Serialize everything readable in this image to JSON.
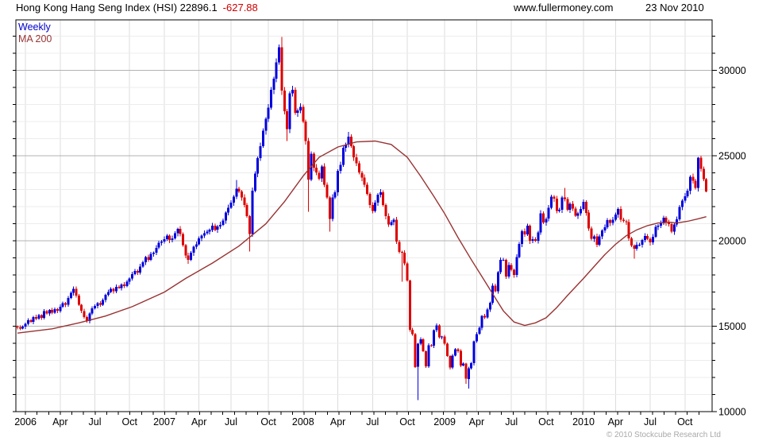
{
  "header": {
    "title": "Hong Kong Hang Seng Index (HSI) 22896.1",
    "change": "-627.88",
    "website": "www.fullermoney.com",
    "date": "23 Nov 2010"
  },
  "legend": {
    "series1": "Weekly",
    "series2": "MA 200"
  },
  "footer": {
    "copyright": "© 2010 Stockcube Research Ltd"
  },
  "colors": {
    "up": "#0000dd",
    "down": "#dd0000",
    "ma": "#993333",
    "change_text": "#cc0000",
    "legend_weekly": "#0000cc",
    "grid_minor": "#ececec",
    "grid_major": "#b3b3b3",
    "grid_vert": "#dcdcdc",
    "axis": "#000000",
    "copyright_text": "#a9a9a9"
  },
  "chart_data": {
    "type": "candlestick",
    "period": "weekly",
    "title": "Hong Kong Hang Seng Index (HSI)",
    "last_close": 22896.1,
    "last_change": -627.88,
    "y_axis": {
      "min": 10000,
      "max": 32950,
      "major_ticks": [
        10000,
        15000,
        20000,
        25000,
        30000
      ],
      "minor_step": 1000,
      "side": "right"
    },
    "x_axis": {
      "ticks": [
        {
          "label": "2006",
          "i": 3
        },
        {
          "label": "Apr",
          "i": 16
        },
        {
          "label": "Jul",
          "i": 29
        },
        {
          "label": "Oct",
          "i": 42
        },
        {
          "label": "2007",
          "i": 55
        },
        {
          "label": "Apr",
          "i": 68
        },
        {
          "label": "Jul",
          "i": 80
        },
        {
          "label": "Oct",
          "i": 94
        },
        {
          "label": "2008",
          "i": 107
        },
        {
          "label": "Apr",
          "i": 120
        },
        {
          "label": "Jul",
          "i": 133
        },
        {
          "label": "Oct",
          "i": 146
        },
        {
          "label": "2009",
          "i": 160
        },
        {
          "label": "Apr",
          "i": 172
        },
        {
          "label": "Jul",
          "i": 185
        },
        {
          "label": "Oct",
          "i": 198
        },
        {
          "label": "2010",
          "i": 212
        },
        {
          "label": "Apr",
          "i": 224
        },
        {
          "label": "Jul",
          "i": 237
        },
        {
          "label": "Oct",
          "i": 250
        }
      ],
      "weeks_per_month": 4.3485
    },
    "first_open": 14990,
    "weekly_closes": [
      14940,
      14870,
      14980,
      15150,
      15350,
      15250,
      15550,
      15450,
      15650,
      15500,
      15880,
      15750,
      15950,
      15800,
      16000,
      15900,
      16150,
      16350,
      16250,
      16650,
      16950,
      17200,
      16800,
      16250,
      15900,
      15550,
      15300,
      15750,
      16050,
      16200,
      16350,
      16250,
      16550,
      16850,
      17000,
      17200,
      17050,
      17300,
      17250,
      17450,
      17350,
      17600,
      17800,
      18050,
      18250,
      18150,
      18500,
      18750,
      19050,
      18900,
      19250,
      19300,
      19600,
      19900,
      19965,
      20100,
      20300,
      20050,
      20150,
      20450,
      20700,
      20400,
      19750,
      19150,
      18900,
      19300,
      19650,
      19800,
      20150,
      20300,
      20450,
      20550,
      20650,
      20900,
      20650,
      20850,
      20950,
      21200,
      21650,
      21950,
      22250,
      22600,
      23050,
      22900,
      22550,
      22100,
      21450,
      20400,
      22950,
      23950,
      24850,
      25550,
      26450,
      27150,
      27800,
      28850,
      29500,
      30450,
      31350,
      28800,
      27600,
      26550,
      28650,
      28850,
      27500,
      27650,
      27850,
      27000,
      25850,
      23600,
      25100,
      24300,
      24000,
      23650,
      24350,
      23300,
      22550,
      21300,
      22550,
      22850,
      24100,
      24450,
      25450,
      25650,
      26100,
      25550,
      24900,
      24550,
      24000,
      23700,
      23300,
      22750,
      22100,
      21750,
      22250,
      22700,
      22850,
      22100,
      21450,
      20950,
      21100,
      21250,
      19950,
      19350,
      19300,
      18680,
      17680,
      14800,
      14550,
      12620,
      13970,
      14240,
      13540,
      12660,
      13890,
      13850,
      14760,
      15040,
      14350,
      14390,
      13970,
      13260,
      12580,
      13280,
      13660,
      13550,
      12700,
      12810,
      11920,
      12530,
      12830,
      14120,
      14550,
      14900,
      15600,
      15520,
      15990,
      16380,
      17390,
      17060,
      18170,
      18890,
      18900,
      17920,
      18600,
      18300,
      18000,
      19060,
      19820,
      20570,
      20380,
      20890,
      20000,
      20100,
      20010,
      20500,
      21620,
      21070,
      21300,
      21930,
      22590,
      22470,
      21750,
      21830,
      22550,
      22460,
      21820,
      22170,
      21900,
      21480,
      21620,
      21870,
      22300,
      21650,
      20730,
      20120,
      20270,
      19770,
      20270,
      20610,
      20790,
      21210,
      21050,
      21240,
      21540,
      21870,
      21240,
      21160,
      21110,
      20140,
      19720,
      19550,
      19770,
      19780,
      20050,
      20290,
      20130,
      19910,
      20250,
      20820,
      20900,
      21030,
      21360,
      21070,
      20980,
      20540,
      20970,
      21260,
      21980,
      22360,
      22620,
      22940,
      23760,
      23520,
      23100,
      24880,
      24220,
      23605,
      22896
    ],
    "wick_overrides": {
      "21": {
        "high": 17330
      },
      "26": {
        "low": 15210
      },
      "64": {
        "low": 18660
      },
      "82": {
        "high": 23560
      },
      "87": {
        "low": 19390
      },
      "98": {
        "high": 31500
      },
      "99": {
        "high": 31960
      },
      "101": {
        "low": 25860
      },
      "109": {
        "low": 21710
      },
      "117": {
        "low": 20540
      },
      "124": {
        "high": 26390
      },
      "144": {
        "low": 17600
      },
      "150": {
        "low": 10680
      },
      "168": {
        "low": 11640
      },
      "169": {
        "low": 11340
      },
      "205": {
        "high": 23100
      },
      "231": {
        "low": 18970
      },
      "255": {
        "high": 24920
      },
      "256": {
        "high": 24990
      },
      "258": {
        "high": 23680,
        "low": 22850
      }
    },
    "ma_200": {
      "label": "MA 200",
      "points": [
        [
          0,
          14600
        ],
        [
          13,
          14850
        ],
        [
          23,
          15200
        ],
        [
          33,
          15600
        ],
        [
          43,
          16150
        ],
        [
          55,
          17000
        ],
        [
          63,
          17800
        ],
        [
          73,
          18700
        ],
        [
          83,
          19700
        ],
        [
          93,
          21000
        ],
        [
          100,
          22300
        ],
        [
          107,
          23800
        ],
        [
          113,
          24900
        ],
        [
          120,
          25500
        ],
        [
          127,
          25800
        ],
        [
          134,
          25850
        ],
        [
          140,
          25650
        ],
        [
          146,
          24900
        ],
        [
          151,
          23800
        ],
        [
          156,
          22600
        ],
        [
          160,
          21600
        ],
        [
          165,
          20200
        ],
        [
          170,
          18900
        ],
        [
          174,
          17900
        ],
        [
          178,
          16900
        ],
        [
          182,
          15900
        ],
        [
          186,
          15250
        ],
        [
          190,
          15050
        ],
        [
          194,
          15200
        ],
        [
          198,
          15500
        ],
        [
          202,
          16100
        ],
        [
          206,
          16800
        ],
        [
          212,
          17800
        ],
        [
          216,
          18500
        ],
        [
          220,
          19200
        ],
        [
          224,
          19800
        ],
        [
          228,
          20300
        ],
        [
          232,
          20650
        ],
        [
          236,
          20900
        ],
        [
          240,
          21050
        ],
        [
          244,
          21100
        ],
        [
          247,
          21050
        ],
        [
          251,
          21150
        ],
        [
          255,
          21300
        ],
        [
          258,
          21420
        ]
      ]
    }
  }
}
